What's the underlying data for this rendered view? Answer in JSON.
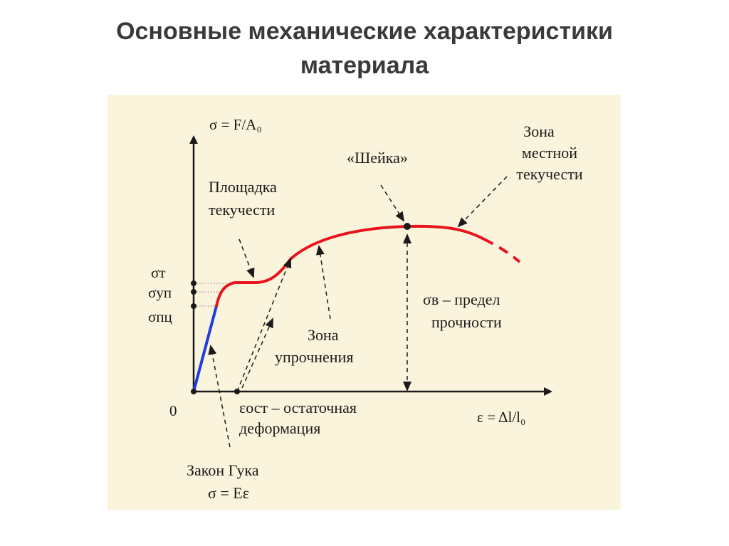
{
  "title": {
    "line1": "Основные механические характеристики",
    "line2": "материала"
  },
  "axes": {
    "y_label": "σ = F/A₀",
    "x_label": "ε = Δl/l₀",
    "origin": "0"
  },
  "stress_marks": [
    "σт",
    "σуп",
    "σпц"
  ],
  "annotations": {
    "yield_plateau": [
      "Площадка",
      "текучести"
    ],
    "neck": "«Шейка»",
    "local_yield": [
      "Зона",
      "местной",
      "текучести"
    ],
    "ultimate": [
      "σв – предел",
      "прочности"
    ],
    "hardening": [
      "Зона",
      "упрочнения"
    ],
    "residual": [
      "εост – остаточная",
      "деформация"
    ],
    "hooke": [
      "Закон Гука",
      "σ = Eε"
    ]
  },
  "colors": {
    "elastic": "#1f3de0",
    "curve": "#e8141c",
    "axes": "#1a1a1a",
    "panel": "#fbf4dc",
    "title": "#3a3a3a"
  }
}
